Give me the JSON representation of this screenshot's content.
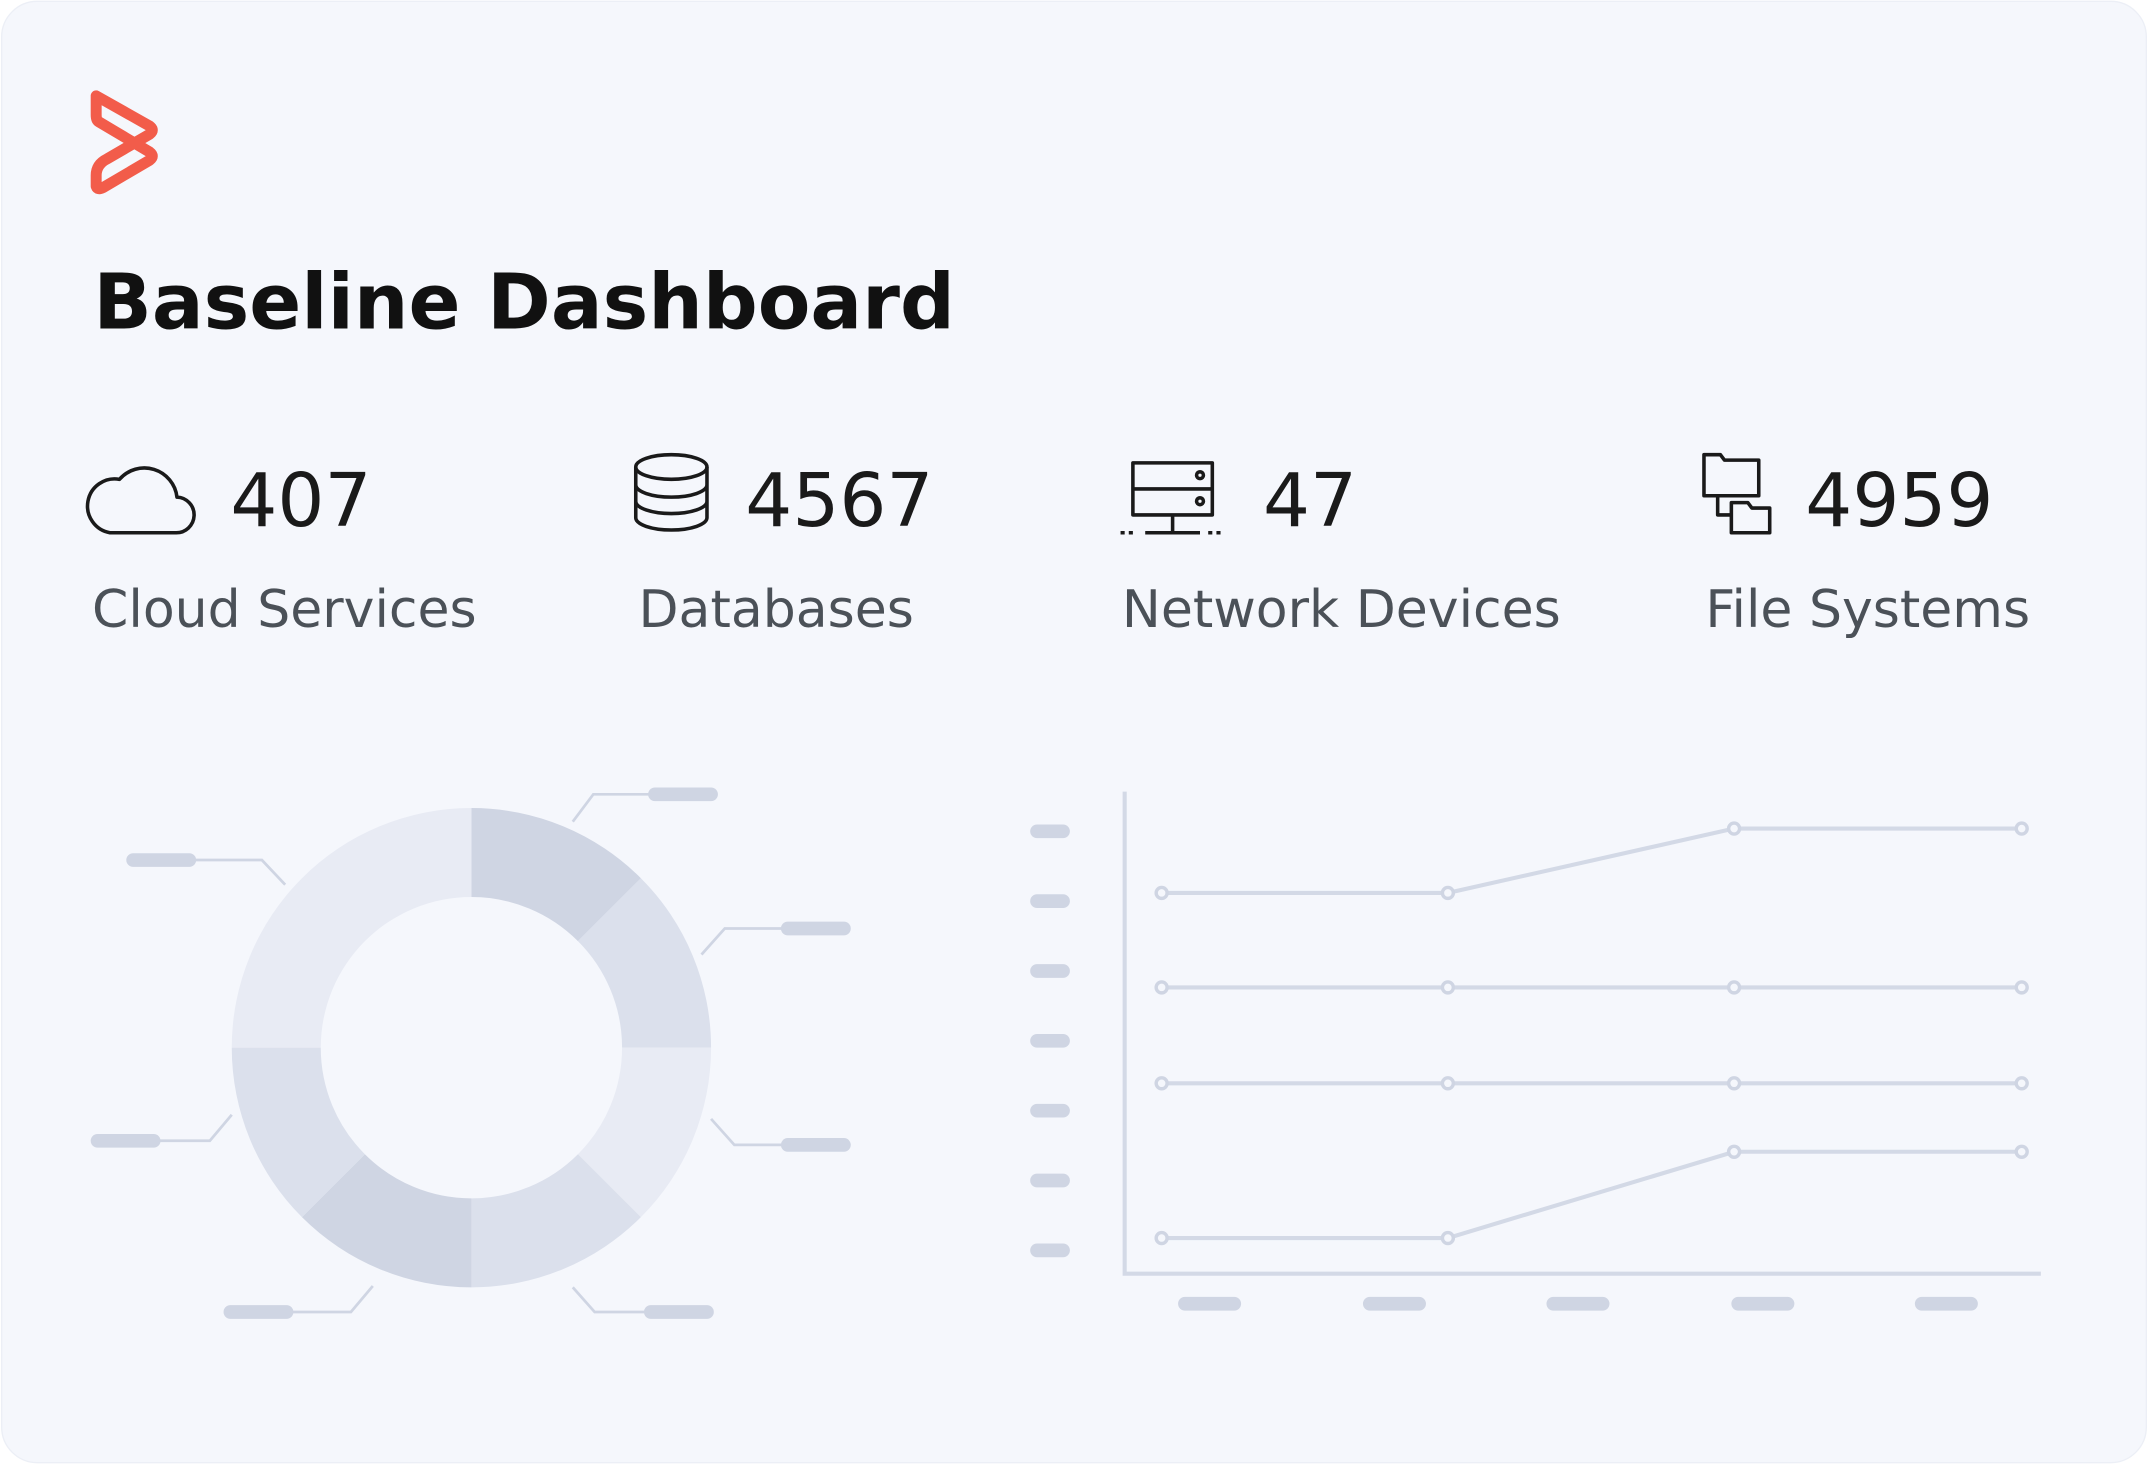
{
  "header": {
    "title": "Baseline Dashboard"
  },
  "stats": [
    {
      "value": 407,
      "label": "Cloud Services"
    },
    {
      "value": 4567,
      "label": "Databases"
    },
    {
      "value": 47,
      "label": "Network Devices"
    },
    {
      "value": 4959,
      "label": "File Systems"
    }
  ]
}
